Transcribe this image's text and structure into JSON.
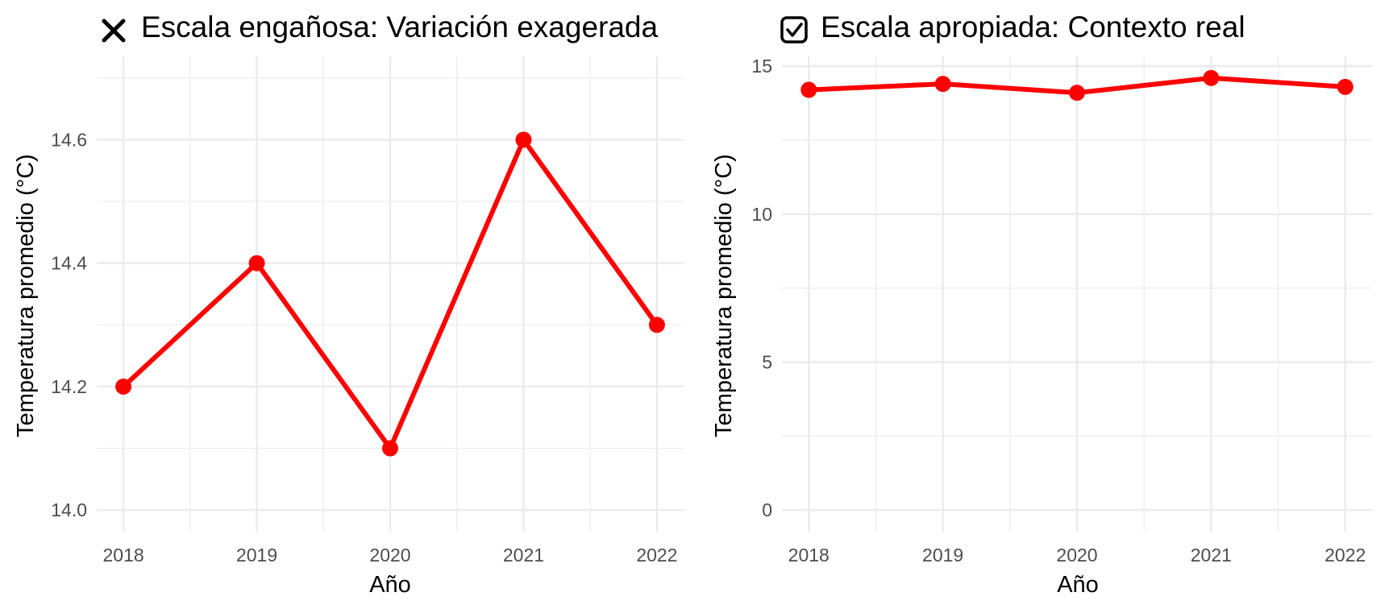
{
  "chart_data": [
    {
      "type": "line",
      "title": "Escala engañosa: Variación exagerada",
      "title_icon": "cross-icon",
      "xlabel": "Año",
      "ylabel": "Temperatura promedio (°C)",
      "x": [
        2018,
        2019,
        2020,
        2021,
        2022
      ],
      "x_tick_labels": [
        "2018",
        "2019",
        "2020",
        "2021",
        "2022"
      ],
      "xlim": [
        2017.8,
        2022.2
      ],
      "ylim": [
        13.965,
        14.735
      ],
      "y_ticks": [
        14.0,
        14.2,
        14.4,
        14.6
      ],
      "y_tick_labels": [
        "14.0",
        "14.2",
        "14.4",
        "14.6"
      ],
      "series": [
        {
          "values": [
            14.2,
            14.4,
            14.1,
            14.6,
            14.3
          ],
          "color": "#ff0000"
        }
      ],
      "grid": true,
      "legend": "none"
    },
    {
      "type": "line",
      "title": "Escala apropiada: Contexto real",
      "title_icon": "checkbox-checked-icon",
      "xlabel": "Año",
      "ylabel": "Temperatura promedio (°C)",
      "x": [
        2018,
        2019,
        2020,
        2021,
        2022
      ],
      "x_tick_labels": [
        "2018",
        "2019",
        "2020",
        "2021",
        "2022"
      ],
      "xlim": [
        2017.8,
        2022.2
      ],
      "ylim": [
        -0.73,
        15.33
      ],
      "y_ticks": [
        0,
        5,
        10,
        15
      ],
      "y_tick_labels": [
        "0",
        "5",
        "10",
        "15"
      ],
      "series": [
        {
          "values": [
            14.2,
            14.4,
            14.1,
            14.6,
            14.3
          ],
          "color": "#ff0000"
        }
      ],
      "grid": true,
      "legend": "none"
    }
  ]
}
